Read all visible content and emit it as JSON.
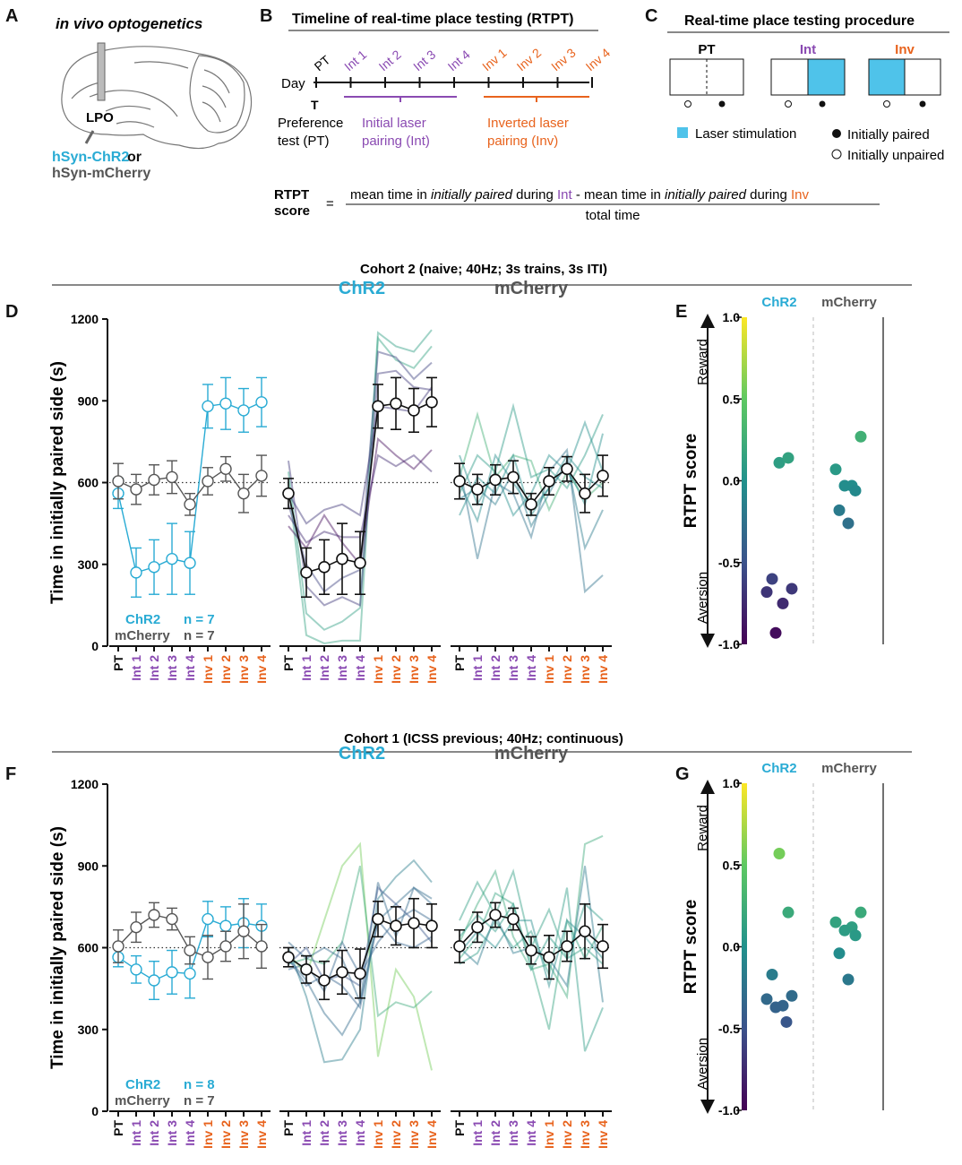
{
  "colors": {
    "chr2": "#29abd4",
    "mcherry": "#555555",
    "int": "#8a4ab2",
    "inv": "#e8631d",
    "laser": "#4fc3ea",
    "black": "#111111"
  },
  "panelA": {
    "letter": "A",
    "title": "in vivo optogenetics",
    "region": "LPO",
    "label_chr2": "hSyn-ChR2",
    "label_or": "or",
    "label_mcherry": "hSyn-mCherry"
  },
  "panelB": {
    "letter": "B",
    "title": "Timeline of real-time place testing (RTPT)",
    "day_label": "Day",
    "pt_label": "PT",
    "t_label": "T",
    "days": [
      {
        "label": "Int 1",
        "group": "int"
      },
      {
        "label": "Int 2",
        "group": "int"
      },
      {
        "label": "Int 3",
        "group": "int"
      },
      {
        "label": "Int 4",
        "group": "int"
      },
      {
        "label": "Inv 1",
        "group": "inv"
      },
      {
        "label": "Inv 2",
        "group": "inv"
      },
      {
        "label": "Inv 3",
        "group": "inv"
      },
      {
        "label": "Inv 4",
        "group": "inv"
      }
    ],
    "pref_line1": "Preference",
    "pref_line2": "test (PT)",
    "int_line1": "Initial laser",
    "int_line2": "pairing (Int)",
    "inv_line1": "Inverted laser",
    "inv_line2": "pairing (Inv)"
  },
  "panelC": {
    "letter": "C",
    "title": "Real-time place testing procedure",
    "pt": "PT",
    "int": "Int",
    "inv": "Inv",
    "laser": "Laser stimulation",
    "paired": "Initially paired",
    "unpaired": "Initially unpaired"
  },
  "formula": {
    "lhs1": "RTPT",
    "lhs2": "score",
    "eq": "=",
    "n1": "mean time in ",
    "n2": "initially paired",
    "n3": " during ",
    "n4": "Int",
    "n5": " - mean time in ",
    "n6": "initially paired",
    "n7": " during ",
    "n8": "Inv",
    "den": "total time"
  },
  "cohort2": {
    "title": "Cohort 2 (naive; 40Hz; 3s trains, 3s ITI)",
    "letter_line": "D",
    "letter_score": "E"
  },
  "cohort1": {
    "title": "Cohort 1 (ICSS previous; 40Hz; continuous)",
    "letter_line": "F",
    "letter_score": "G"
  },
  "common": {
    "ylabel": "Time in initially paired side (s)",
    "score_label": "RTPT score",
    "reward": "Reward",
    "aversion": "Aversion",
    "chr2": "ChR2",
    "mcherry": "mCherry",
    "n_label": "n = ",
    "xticks": [
      "PT",
      "Int 1",
      "Int 2",
      "Int 3",
      "Int 4",
      "Inv 1",
      "Inv 2",
      "Inv 3",
      "Inv 4"
    ]
  },
  "chart_data": [
    {
      "type": "line",
      "id": "D",
      "ylim": [
        0,
        1200
      ],
      "yticks": [
        "0",
        "300",
        "600",
        "900",
        "1200"
      ],
      "chance": 600,
      "series": [
        {
          "name": "ChR2",
          "n": "7",
          "mean": [
            560,
            270,
            290,
            320,
            305,
            880,
            890,
            865,
            895
          ],
          "sem": [
            55,
            90,
            100,
            130,
            115,
            80,
            95,
            80,
            90
          ]
        },
        {
          "name": "mCherry",
          "n": "7",
          "mean": [
            605,
            575,
            610,
            620,
            520,
            605,
            650,
            560,
            625
          ],
          "sem": [
            65,
            55,
            55,
            60,
            40,
            50,
            45,
            70,
            75
          ]
        }
      ],
      "chr2_individual": [
        [
          640,
          120,
          60,
          90,
          140,
          1150,
          1100,
          1080,
          1160
        ],
        [
          600,
          40,
          10,
          20,
          20,
          1130,
          1050,
          1020,
          1100
        ],
        [
          520,
          300,
          200,
          250,
          280,
          1080,
          1060,
          980,
          1040
        ],
        [
          680,
          220,
          150,
          180,
          150,
          1000,
          1010,
          950,
          940
        ],
        [
          560,
          450,
          500,
          520,
          480,
          880,
          870,
          860,
          950
        ],
        [
          480,
          380,
          420,
          400,
          400,
          700,
          660,
          700,
          640
        ],
        [
          440,
          360,
          480,
          380,
          300,
          760,
          700,
          650,
          720
        ]
      ],
      "mcherry_individual": [
        [
          620,
          850,
          620,
          700,
          680,
          500,
          640,
          540,
          600
        ],
        [
          560,
          700,
          640,
          880,
          620,
          650,
          580,
          700,
          850
        ],
        [
          480,
          620,
          560,
          700,
          480,
          580,
          660,
          520,
          780
        ],
        [
          700,
          520,
          640,
          480,
          560,
          700,
          640,
          820,
          640
        ],
        [
          600,
          460,
          700,
          600,
          500,
          580,
          700,
          620,
          580
        ],
        [
          540,
          580,
          520,
          640,
          440,
          560,
          680,
          360,
          500
        ],
        [
          660,
          320,
          600,
          560,
          400,
          640,
          720,
          200,
          260
        ]
      ],
      "score": {
        "ylim": [
          -1.0,
          1.0
        ],
        "yticks": [
          "1.0",
          "0.5",
          "0.0",
          "-0.5",
          "-1.0"
        ],
        "chr2": [
          0.11,
          0.14,
          -0.6,
          -0.66,
          -0.68,
          -0.75,
          -0.93
        ],
        "mcherry": [
          0.27,
          0.07,
          -0.03,
          -0.03,
          -0.06,
          -0.18,
          -0.26
        ]
      }
    },
    {
      "type": "line",
      "id": "F",
      "ylim": [
        0,
        1200
      ],
      "yticks": [
        "0",
        "300",
        "600",
        "900",
        "1200"
      ],
      "chance": 600,
      "series": [
        {
          "name": "ChR2",
          "n": "8",
          "mean": [
            565,
            520,
            480,
            510,
            505,
            705,
            680,
            690,
            680
          ],
          "sem": [
            35,
            50,
            70,
            80,
            90,
            65,
            70,
            90,
            80
          ]
        },
        {
          "name": "mCherry",
          "n": "7",
          "mean": [
            605,
            675,
            720,
            705,
            590,
            565,
            605,
            660,
            605
          ],
          "sem": [
            60,
            55,
            45,
            40,
            50,
            80,
            55,
            100,
            80
          ]
        }
      ],
      "chr2_individual": [
        [
          580,
          500,
          700,
          900,
          980,
          200,
          520,
          420,
          150
        ],
        [
          540,
          560,
          540,
          620,
          900,
          350,
          400,
          380,
          440
        ],
        [
          600,
          420,
          180,
          190,
          300,
          780,
          860,
          920,
          840
        ],
        [
          560,
          480,
          360,
          280,
          400,
          700,
          760,
          820,
          780
        ],
        [
          620,
          560,
          600,
          560,
          400,
          840,
          640,
          820,
          760
        ],
        [
          520,
          540,
          440,
          620,
          500,
          620,
          700,
          740,
          700
        ],
        [
          560,
          460,
          500,
          460,
          380,
          700,
          620,
          600,
          640
        ],
        [
          540,
          600,
          480,
          500,
          460,
          820,
          760,
          700,
          620
        ]
      ],
      "mcherry_individual": [
        [
          620,
          760,
          880,
          640,
          520,
          540,
          420,
          980,
          1010
        ],
        [
          560,
          640,
          800,
          760,
          540,
          300,
          700,
          560,
          680
        ],
        [
          700,
          840,
          720,
          880,
          600,
          740,
          560,
          600,
          540
        ],
        [
          540,
          580,
          700,
          600,
          660,
          500,
          820,
          220,
          380
        ],
        [
          640,
          720,
          660,
          760,
          520,
          640,
          560,
          760,
          700
        ],
        [
          580,
          660,
          600,
          700,
          700,
          460,
          700,
          640,
          560
        ],
        [
          600,
          540,
          720,
          580,
          600,
          560,
          460,
          900,
          400
        ]
      ],
      "score": {
        "ylim": [
          -1.0,
          1.0
        ],
        "yticks": [
          "1.0",
          "0.5",
          "0.0",
          "-0.5",
          "-1.0"
        ],
        "chr2": [
          0.57,
          0.21,
          -0.17,
          -0.3,
          -0.32,
          -0.36,
          -0.37,
          -0.46
        ],
        "mcherry": [
          0.21,
          0.15,
          0.12,
          0.1,
          0.07,
          -0.04,
          -0.2
        ]
      }
    }
  ]
}
